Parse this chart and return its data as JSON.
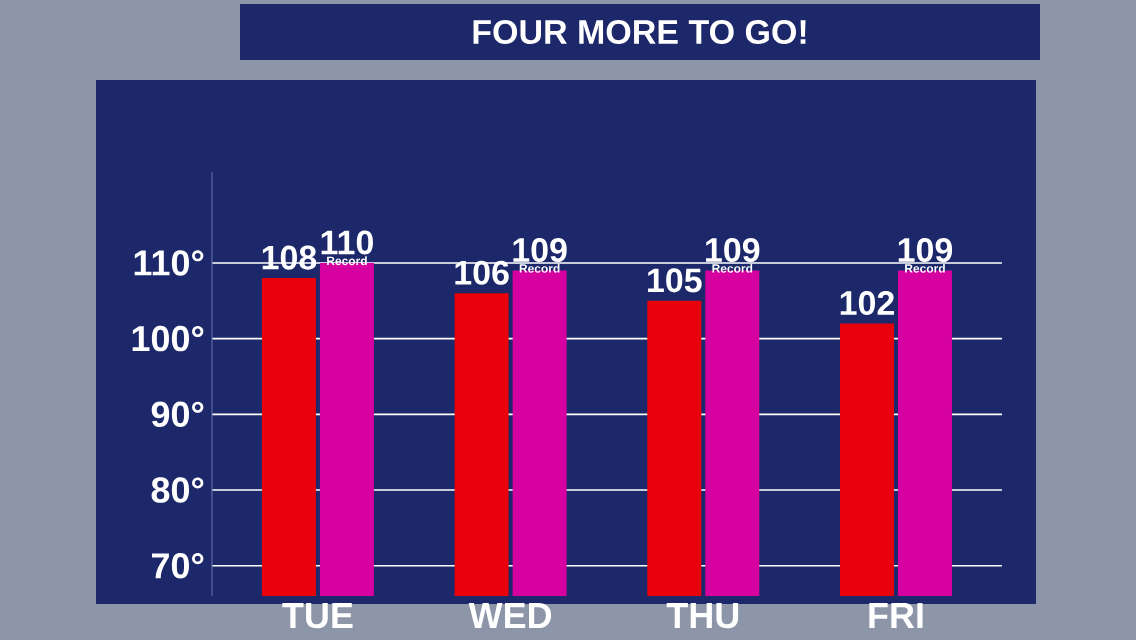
{
  "chart_data": {
    "type": "bar",
    "title": "FOUR MORE TO GO!",
    "categories": [
      "TUE",
      "WED",
      "THU",
      "FRI"
    ],
    "series": [
      {
        "color": "#e8000b",
        "values": [
          108,
          106,
          105,
          102
        ]
      },
      {
        "name": "Record",
        "color": "#d600a0",
        "values": [
          110,
          109,
          109,
          109
        ]
      }
    ],
    "ylim": [
      66,
      122
    ],
    "yticks": [
      {
        "value": 70,
        "label": "70°"
      },
      {
        "value": 80,
        "label": "80°"
      },
      {
        "value": 90,
        "label": "90°"
      },
      {
        "value": 100,
        "label": "100°"
      },
      {
        "value": 110,
        "label": "110°"
      }
    ],
    "grid": "y",
    "data_labels": true
  }
}
